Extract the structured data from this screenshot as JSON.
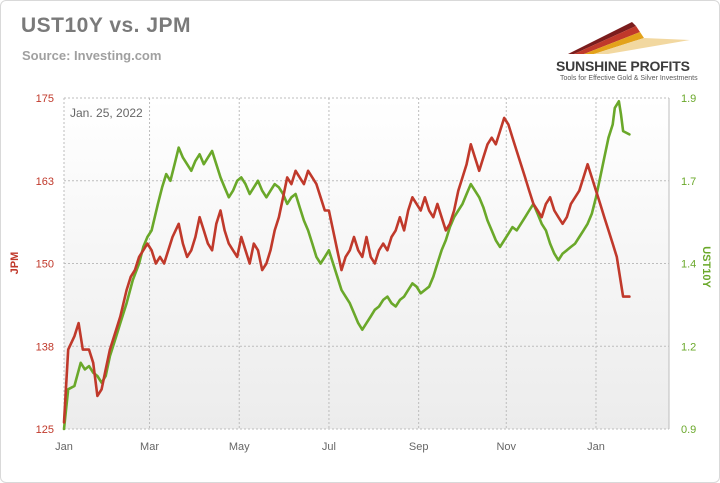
{
  "header": {
    "title": "UST10Y vs. JPM",
    "source": "Source: Investing.com"
  },
  "logo": {
    "name": "SUNSHINE PROFITS",
    "tagline": "Tools for Effective Gold & Silver Investments"
  },
  "colors": {
    "jpm": "#c0392b",
    "ust10y": "#6aa82a",
    "plot_bg_top": "#ffffff",
    "plot_bg_bottom": "#ececec",
    "grid": "#bdbdbd"
  },
  "chart_data": {
    "type": "line",
    "annotation": "Jan. 25, 2022",
    "xlabel": "",
    "x_ticks": [
      "Jan",
      "Mar",
      "May",
      "Jul",
      "Sep",
      "Nov",
      "Jan"
    ],
    "x_tick_index": [
      0,
      41,
      84,
      127,
      170,
      212,
      255
    ],
    "x_range": [
      0,
      290
    ],
    "grid": true,
    "y_left": {
      "label": "JPM",
      "ticks": [
        "175",
        "163",
        "150",
        "138",
        "125"
      ],
      "range": [
        125,
        175
      ]
    },
    "y_right": {
      "label": "UST10Y",
      "ticks": [
        "1.9",
        "1.7",
        "1.4",
        "1.2",
        "0.9"
      ],
      "range": [
        0.9,
        1.9
      ]
    },
    "series": [
      {
        "name": "JPM",
        "axis": "left",
        "color": "#c0392b",
        "values": [
          [
            0,
            126
          ],
          [
            2,
            137
          ],
          [
            5,
            139
          ],
          [
            7,
            141
          ],
          [
            9,
            137
          ],
          [
            12,
            137
          ],
          [
            14,
            135
          ],
          [
            16,
            130
          ],
          [
            18,
            131
          ],
          [
            20,
            134
          ],
          [
            22,
            137
          ],
          [
            25,
            140
          ],
          [
            27,
            142
          ],
          [
            30,
            146
          ],
          [
            32,
            148
          ],
          [
            34,
            149
          ],
          [
            36,
            151
          ],
          [
            38,
            152
          ],
          [
            40,
            153
          ],
          [
            42,
            152
          ],
          [
            44,
            150
          ],
          [
            46,
            151
          ],
          [
            48,
            150
          ],
          [
            50,
            152
          ],
          [
            52,
            154
          ],
          [
            55,
            156
          ],
          [
            57,
            153
          ],
          [
            59,
            151
          ],
          [
            61,
            152
          ],
          [
            63,
            154
          ],
          [
            65,
            157
          ],
          [
            67,
            155
          ],
          [
            69,
            153
          ],
          [
            71,
            152
          ],
          [
            73,
            156
          ],
          [
            75,
            158
          ],
          [
            77,
            155
          ],
          [
            79,
            153
          ],
          [
            81,
            152
          ],
          [
            83,
            151
          ],
          [
            85,
            154
          ],
          [
            87,
            152
          ],
          [
            89,
            150
          ],
          [
            91,
            153
          ],
          [
            93,
            152
          ],
          [
            95,
            149
          ],
          [
            97,
            150
          ],
          [
            99,
            152
          ],
          [
            101,
            155
          ],
          [
            103,
            157
          ],
          [
            105,
            160
          ],
          [
            107,
            163
          ],
          [
            109,
            162
          ],
          [
            111,
            164
          ],
          [
            113,
            163
          ],
          [
            115,
            162
          ],
          [
            117,
            164
          ],
          [
            119,
            163
          ],
          [
            121,
            162
          ],
          [
            123,
            160
          ],
          [
            125,
            158
          ],
          [
            127,
            158
          ],
          [
            129,
            155
          ],
          [
            131,
            152
          ],
          [
            133,
            149
          ],
          [
            135,
            151
          ],
          [
            137,
            152
          ],
          [
            139,
            154
          ],
          [
            141,
            152
          ],
          [
            143,
            151
          ],
          [
            145,
            154
          ],
          [
            147,
            151
          ],
          [
            149,
            150
          ],
          [
            151,
            152
          ],
          [
            153,
            153
          ],
          [
            155,
            152
          ],
          [
            157,
            154
          ],
          [
            159,
            155
          ],
          [
            161,
            157
          ],
          [
            163,
            155
          ],
          [
            165,
            158
          ],
          [
            167,
            160
          ],
          [
            169,
            159
          ],
          [
            171,
            158
          ],
          [
            173,
            160
          ],
          [
            175,
            158
          ],
          [
            177,
            157
          ],
          [
            179,
            159
          ],
          [
            181,
            157
          ],
          [
            183,
            155
          ],
          [
            185,
            156
          ],
          [
            187,
            158
          ],
          [
            189,
            161
          ],
          [
            191,
            163
          ],
          [
            193,
            165
          ],
          [
            195,
            168
          ],
          [
            197,
            166
          ],
          [
            199,
            164
          ],
          [
            201,
            166
          ],
          [
            203,
            168
          ],
          [
            205,
            169
          ],
          [
            207,
            168
          ],
          [
            209,
            170
          ],
          [
            211,
            172
          ],
          [
            213,
            171
          ],
          [
            215,
            169
          ],
          [
            217,
            167
          ],
          [
            219,
            165
          ],
          [
            221,
            163
          ],
          [
            223,
            161
          ],
          [
            225,
            159
          ],
          [
            227,
            158
          ],
          [
            229,
            157
          ],
          [
            231,
            159
          ],
          [
            233,
            160
          ],
          [
            235,
            158
          ],
          [
            237,
            157
          ],
          [
            239,
            156
          ],
          [
            241,
            157
          ],
          [
            243,
            159
          ],
          [
            245,
            160
          ],
          [
            247,
            161
          ],
          [
            249,
            163
          ],
          [
            251,
            165
          ],
          [
            253,
            163
          ],
          [
            255,
            161
          ],
          [
            257,
            159
          ],
          [
            259,
            157
          ],
          [
            261,
            155
          ],
          [
            263,
            153
          ],
          [
            265,
            151
          ],
          [
            267,
            147
          ],
          [
            268,
            145
          ],
          [
            271,
            145
          ]
        ]
      },
      {
        "name": "UST10Y",
        "axis": "right",
        "color": "#6aa82a",
        "values": [
          [
            0,
            0.9
          ],
          [
            2,
            1.02
          ],
          [
            5,
            1.03
          ],
          [
            8,
            1.1
          ],
          [
            10,
            1.08
          ],
          [
            12,
            1.09
          ],
          [
            14,
            1.07
          ],
          [
            16,
            1.06
          ],
          [
            18,
            1.04
          ],
          [
            20,
            1.06
          ],
          [
            22,
            1.12
          ],
          [
            25,
            1.18
          ],
          [
            27,
            1.22
          ],
          [
            30,
            1.28
          ],
          [
            33,
            1.35
          ],
          [
            36,
            1.4
          ],
          [
            38,
            1.45
          ],
          [
            40,
            1.48
          ],
          [
            42,
            1.5
          ],
          [
            45,
            1.58
          ],
          [
            47,
            1.63
          ],
          [
            49,
            1.67
          ],
          [
            51,
            1.65
          ],
          [
            53,
            1.7
          ],
          [
            55,
            1.75
          ],
          [
            57,
            1.72
          ],
          [
            59,
            1.7
          ],
          [
            61,
            1.68
          ],
          [
            63,
            1.71
          ],
          [
            65,
            1.73
          ],
          [
            67,
            1.7
          ],
          [
            69,
            1.72
          ],
          [
            71,
            1.74
          ],
          [
            73,
            1.7
          ],
          [
            75,
            1.66
          ],
          [
            77,
            1.63
          ],
          [
            79,
            1.6
          ],
          [
            81,
            1.62
          ],
          [
            83,
            1.65
          ],
          [
            85,
            1.66
          ],
          [
            87,
            1.64
          ],
          [
            89,
            1.61
          ],
          [
            91,
            1.63
          ],
          [
            93,
            1.65
          ],
          [
            95,
            1.62
          ],
          [
            97,
            1.6
          ],
          [
            99,
            1.62
          ],
          [
            101,
            1.64
          ],
          [
            103,
            1.63
          ],
          [
            105,
            1.61
          ],
          [
            107,
            1.58
          ],
          [
            109,
            1.6
          ],
          [
            111,
            1.61
          ],
          [
            113,
            1.57
          ],
          [
            115,
            1.53
          ],
          [
            117,
            1.5
          ],
          [
            119,
            1.46
          ],
          [
            121,
            1.42
          ],
          [
            123,
            1.4
          ],
          [
            125,
            1.42
          ],
          [
            127,
            1.44
          ],
          [
            129,
            1.4
          ],
          [
            131,
            1.36
          ],
          [
            133,
            1.32
          ],
          [
            135,
            1.3
          ],
          [
            137,
            1.28
          ],
          [
            139,
            1.25
          ],
          [
            141,
            1.22
          ],
          [
            143,
            1.2
          ],
          [
            145,
            1.22
          ],
          [
            147,
            1.24
          ],
          [
            149,
            1.26
          ],
          [
            151,
            1.27
          ],
          [
            153,
            1.29
          ],
          [
            155,
            1.3
          ],
          [
            157,
            1.28
          ],
          [
            159,
            1.27
          ],
          [
            161,
            1.29
          ],
          [
            163,
            1.3
          ],
          [
            165,
            1.32
          ],
          [
            167,
            1.34
          ],
          [
            169,
            1.33
          ],
          [
            171,
            1.31
          ],
          [
            173,
            1.32
          ],
          [
            175,
            1.33
          ],
          [
            177,
            1.36
          ],
          [
            179,
            1.4
          ],
          [
            181,
            1.44
          ],
          [
            183,
            1.47
          ],
          [
            185,
            1.51
          ],
          [
            187,
            1.54
          ],
          [
            189,
            1.56
          ],
          [
            191,
            1.58
          ],
          [
            193,
            1.61
          ],
          [
            195,
            1.64
          ],
          [
            197,
            1.62
          ],
          [
            199,
            1.6
          ],
          [
            201,
            1.57
          ],
          [
            203,
            1.53
          ],
          [
            205,
            1.5
          ],
          [
            207,
            1.47
          ],
          [
            209,
            1.45
          ],
          [
            211,
            1.47
          ],
          [
            213,
            1.49
          ],
          [
            215,
            1.51
          ],
          [
            217,
            1.5
          ],
          [
            219,
            1.52
          ],
          [
            221,
            1.54
          ],
          [
            223,
            1.56
          ],
          [
            225,
            1.58
          ],
          [
            227,
            1.55
          ],
          [
            229,
            1.52
          ],
          [
            231,
            1.5
          ],
          [
            233,
            1.46
          ],
          [
            235,
            1.43
          ],
          [
            237,
            1.41
          ],
          [
            239,
            1.43
          ],
          [
            241,
            1.44
          ],
          [
            243,
            1.45
          ],
          [
            245,
            1.46
          ],
          [
            247,
            1.48
          ],
          [
            249,
            1.5
          ],
          [
            251,
            1.52
          ],
          [
            253,
            1.55
          ],
          [
            255,
            1.6
          ],
          [
            257,
            1.66
          ],
          [
            259,
            1.72
          ],
          [
            261,
            1.78
          ],
          [
            263,
            1.82
          ],
          [
            264,
            1.87
          ],
          [
            266,
            1.89
          ],
          [
            267,
            1.85
          ],
          [
            268,
            1.8
          ],
          [
            271,
            1.79
          ]
        ]
      }
    ]
  }
}
